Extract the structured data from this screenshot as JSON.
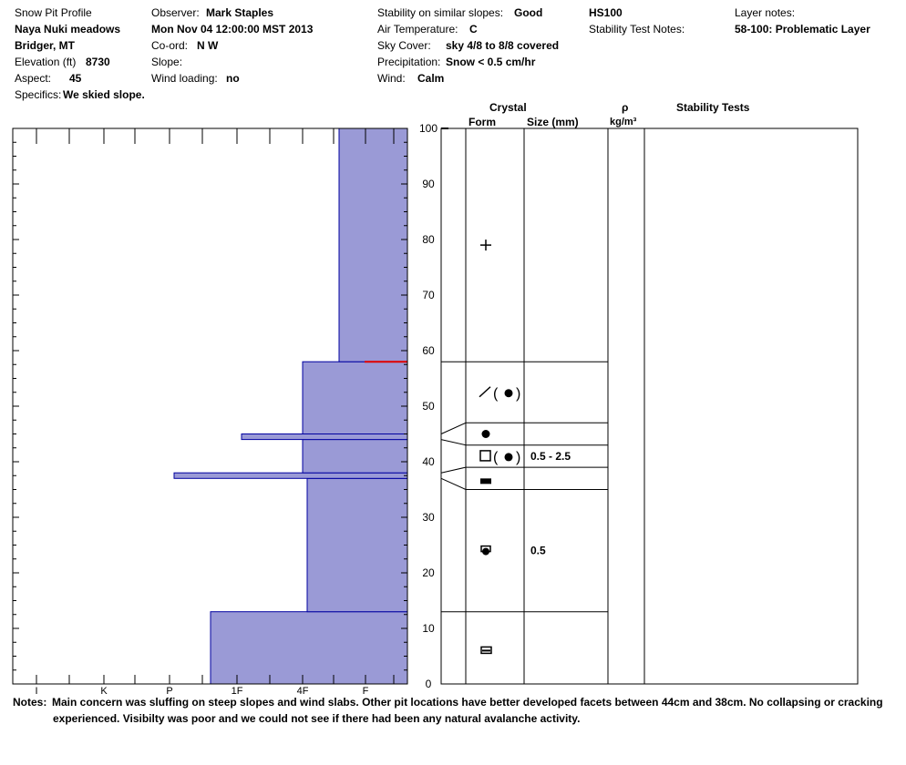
{
  "header": {
    "title": "Snow Pit Profile",
    "location": "Naya Nuki meadows",
    "region": "Bridger, MT",
    "elevation_label": "Elevation (ft)",
    "elevation_value": "8730",
    "aspect_label": "Aspect:",
    "aspect_value": "45",
    "specifics_label": "Specifics:",
    "specifics_value": "We skied slope.",
    "observer_label": "Observer:",
    "observer_value": "Mark Staples",
    "datetime": "Mon Nov 04 12:00:00 MST 2013",
    "coord_label": "Co-ord:",
    "coord_value": "N  W",
    "slope_label": "Slope:",
    "wind_loading_label": "Wind loading:",
    "wind_loading_value": "no",
    "stability_label": "Stability on similar slopes:",
    "stability_value": "Good",
    "air_temp_label": "Air Temperature:",
    "air_temp_value": "C",
    "sky_label": "Sky Cover:",
    "sky_value": "sky 4/8 to 8/8 covered",
    "precip_label": "Precipitation:",
    "precip_value": "Snow < 0.5 cm/hr",
    "wind_label": "Wind:",
    "wind_value": "Calm",
    "hs": "HS100",
    "stability_test_notes_label": "Stability Test Notes:",
    "layer_notes_label": "Layer notes:",
    "layer_notes_value": "58-100: Problematic Layer"
  },
  "columns": {
    "crystal": "Crystal",
    "form": "Form",
    "size": "Size (mm)",
    "rho": "ρ",
    "density_unit": "kg/m³",
    "stability_tests": "Stability Tests"
  },
  "notes": {
    "label": "Notes:",
    "line1": "Main concern was sluffing on steep slopes and wind slabs. Other pit locations have better developed facets between 44cm and 38cm. No collapsing or cracking",
    "line2": "experienced. Visibilty was poor and we could not see if there had been any natural avalanche activity."
  },
  "colors": {
    "hardness_fill": "#9a9ad6",
    "hardness_stroke": "#0000a0",
    "problem_layer": "#e00000"
  },
  "chart_data": {
    "type": "area",
    "x_axis_label": "hand hardness",
    "x_ticks": [
      "I",
      "K",
      "P",
      "1F",
      "4F",
      "F"
    ],
    "ylim": [
      0,
      100
    ],
    "y_ticks": [
      0,
      10,
      20,
      30,
      40,
      50,
      60,
      70,
      80,
      90,
      100
    ],
    "hardness_layers": [
      {
        "bottom": 0,
        "top": 13,
        "hardness": "1F+"
      },
      {
        "bottom": 13,
        "top": 37,
        "hardness": "4F-"
      },
      {
        "bottom": 37,
        "top": 38,
        "hardness": "P-"
      },
      {
        "bottom": 38,
        "top": 44,
        "hardness": "4F"
      },
      {
        "bottom": 44,
        "top": 45,
        "hardness": "1F-"
      },
      {
        "bottom": 45,
        "top": 58,
        "hardness": "4F"
      },
      {
        "bottom": 58,
        "top": 100,
        "hardness": "F+"
      }
    ],
    "layer_boundaries": [
      13,
      35,
      39,
      43,
      47,
      58
    ],
    "problem_layer_depth": 58,
    "grain_symbols": [
      {
        "depth": 79,
        "form": "precipitation particles",
        "glyph": "+"
      },
      {
        "depth": 52.5,
        "form": "decomposing and rounds",
        "glyph": "╱(●)"
      },
      {
        "depth": 45,
        "form": "rounded grains",
        "glyph": "●"
      },
      {
        "depth": 41,
        "form": "faceted and rounds",
        "glyph": "□(●)",
        "size": "0.5 - 2.5"
      },
      {
        "depth": 36.5,
        "form": "melt-freeze crust",
        "glyph": "▬"
      },
      {
        "depth": 24,
        "form": "faceted rounded grains",
        "glyph": "rounding-facet",
        "size": "0.5"
      },
      {
        "depth": 6,
        "form": "ice layer",
        "glyph": "ice"
      }
    ]
  }
}
